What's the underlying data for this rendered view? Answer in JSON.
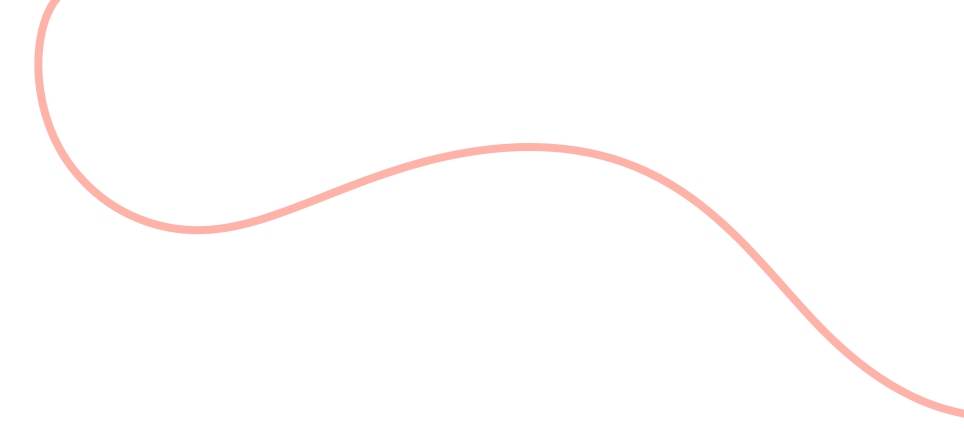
{
  "colors": {
    "background": "#ffffff",
    "curve": "#ffb3a8"
  },
  "icons": [
    "wavy-curve"
  ]
}
